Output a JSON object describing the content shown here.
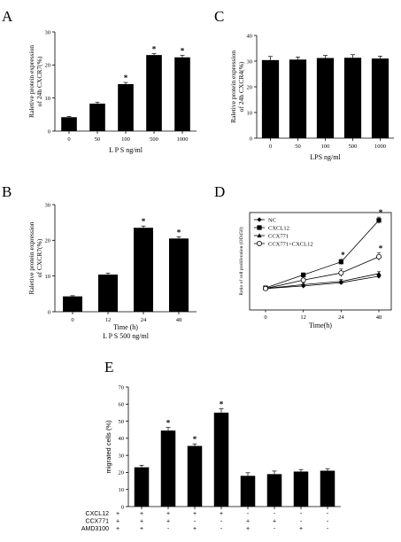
{
  "chart_data": [
    {
      "panel": "A",
      "type": "bar",
      "categories": [
        "0",
        "50",
        "100",
        "500",
        "1000"
      ],
      "values": [
        4.2,
        8.3,
        14.2,
        23.0,
        22.3
      ],
      "errors": [
        0.2,
        0.4,
        0.5,
        0.4,
        0.6
      ],
      "significance": [
        "",
        "",
        "*",
        "*",
        "*"
      ],
      "xlabel": "L P S  ng/ml",
      "ylabel_lines": [
        "Raletive protein expression",
        "of 24h CXCR7(%)"
      ],
      "ylim": [
        0,
        30
      ],
      "yticks": [
        0,
        10,
        20,
        30
      ],
      "color": "#000000"
    },
    {
      "panel": "C",
      "type": "bar",
      "categories": [
        "0",
        "50",
        "100",
        "500",
        "1000"
      ],
      "values": [
        30.4,
        30.6,
        31.2,
        31.3,
        31.0
      ],
      "errors": [
        1.4,
        1.0,
        1.0,
        1.2,
        0.9
      ],
      "significance": [
        "",
        "",
        "",
        "",
        ""
      ],
      "xlabel": "LPS ng/ml",
      "ylabel_lines": [
        "Raletive protein expression",
        "of 24h CXCR4(%)"
      ],
      "ylim": [
        0,
        40
      ],
      "yticks": [
        0,
        10,
        20,
        30,
        40
      ],
      "color": "#000000"
    },
    {
      "panel": "B",
      "type": "bar",
      "categories": [
        "0",
        "12",
        "24",
        "48"
      ],
      "values": [
        4.3,
        10.4,
        23.5,
        20.5
      ],
      "errors": [
        0.2,
        0.4,
        0.5,
        0.5
      ],
      "significance": [
        "",
        "",
        "*",
        "*"
      ],
      "xlabel_lines": [
        "Time (h)",
        "L P S  500 ng/ml"
      ],
      "ylabel_lines": [
        "Raletive protein expression",
        "of CXCR7(%)"
      ],
      "ylim": [
        0,
        30
      ],
      "yticks": [
        0,
        10,
        20,
        30
      ],
      "color": "#000000"
    },
    {
      "panel": "D",
      "type": "line",
      "x": [
        0,
        12,
        24,
        48
      ],
      "xlabel": "Time(h)",
      "ylabel": "Ratio of cell proliferation (OD450)",
      "series": [
        {
          "name": "NC",
          "marker": "diamond",
          "values": [
            0.33,
            0.37,
            0.42,
            0.52
          ],
          "errors": [
            0.02,
            0.02,
            0.03,
            0.03
          ],
          "significance": [
            "",
            "",
            "",
            ""
          ]
        },
        {
          "name": "CXCL12",
          "marker": "square",
          "values": [
            0.34,
            0.54,
            0.74,
            1.38
          ],
          "errors": [
            0.02,
            0.03,
            0.04,
            0.05
          ],
          "significance": [
            "",
            "",
            "*",
            "*"
          ]
        },
        {
          "name": "CCX771",
          "marker": "triangle",
          "values": [
            0.33,
            0.39,
            0.44,
            0.56
          ],
          "errors": [
            0.02,
            0.02,
            0.03,
            0.03
          ],
          "significance": [
            "",
            "",
            "",
            ""
          ]
        },
        {
          "name": "CCX771+CXCL12",
          "marker": "circle-open",
          "values": [
            0.33,
            0.46,
            0.57,
            0.82
          ],
          "errors": [
            0.02,
            0.05,
            0.06,
            0.06
          ],
          "significance": [
            "",
            "",
            "",
            "*"
          ]
        }
      ],
      "ylim": [
        0,
        1.5
      ],
      "legend_position": "top-left",
      "color": "#000000"
    },
    {
      "panel": "E",
      "type": "bar",
      "categories": [
        "1",
        "2",
        "3",
        "4",
        "5",
        "6",
        "7",
        "8"
      ],
      "values": [
        23.0,
        44.5,
        35.5,
        55.0,
        18.0,
        19.0,
        20.5,
        21.0
      ],
      "errors": [
        1.2,
        1.8,
        1.2,
        2.2,
        1.8,
        1.8,
        1.2,
        1.2
      ],
      "significance": [
        "",
        "*",
        "*",
        "*",
        "",
        "",
        "",
        ""
      ],
      "ylabel": "migrated cells (%)",
      "ylim": [
        0,
        70
      ],
      "yticks": [
        0,
        10,
        20,
        30,
        40,
        50,
        60,
        70
      ],
      "treatment_table": [
        {
          "label": "CXCL12",
          "signs": [
            "+",
            "+",
            "+",
            "+",
            "-",
            "-",
            "-",
            "-"
          ]
        },
        {
          "label": "CCX771",
          "signs": [
            "+",
            "+",
            "-",
            "-",
            "+",
            "+",
            "-",
            "-"
          ]
        },
        {
          "label": "AMD3100",
          "signs": [
            "+",
            "-",
            "+",
            "-",
            "+",
            "-",
            "+",
            "-"
          ]
        }
      ],
      "color": "#000000"
    }
  ]
}
